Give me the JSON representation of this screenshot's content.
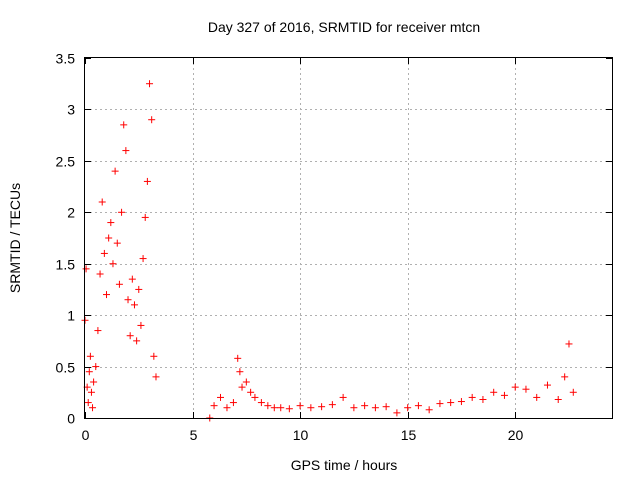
{
  "chart_data": {
    "type": "scatter",
    "title": "Day 327 of 2016, SRMTID for receiver mtcn",
    "xlabel": "GPS time / hours",
    "ylabel": "SRMTID / TECUs",
    "xlim": [
      0,
      24.5
    ],
    "ylim": [
      0,
      3.5
    ],
    "xticks": [
      0,
      5,
      10,
      15,
      20
    ],
    "xtick_labels": [
      "0",
      "5",
      "10",
      "15",
      "20"
    ],
    "yticks": [
      0,
      0.5,
      1,
      1.5,
      2,
      2.5,
      3,
      3.5
    ],
    "ytick_labels": [
      "0",
      "0.5",
      "1",
      "1.5",
      "2",
      "2.5",
      "3",
      "3.5"
    ],
    "grid": true,
    "marker": "+",
    "color": "#ff0000",
    "series": [
      {
        "name": "SRMTID",
        "x": [
          0.0,
          0.05,
          0.1,
          0.15,
          0.2,
          0.25,
          0.3,
          0.35,
          0.4,
          0.5,
          0.6,
          0.7,
          0.8,
          0.9,
          1.0,
          1.1,
          1.2,
          1.3,
          1.4,
          1.5,
          1.6,
          1.7,
          1.8,
          1.9,
          2.0,
          2.1,
          2.2,
          2.3,
          2.4,
          2.5,
          2.6,
          2.7,
          2.8,
          2.9,
          3.0,
          3.1,
          3.2,
          3.3,
          5.8,
          6.0,
          6.3,
          6.6,
          6.9,
          7.1,
          7.2,
          7.3,
          7.5,
          7.7,
          7.9,
          8.2,
          8.5,
          8.8,
          9.1,
          9.5,
          10.0,
          10.5,
          11.0,
          11.5,
          12.0,
          12.5,
          13.0,
          13.5,
          14.0,
          14.5,
          15.0,
          15.5,
          16.0,
          16.5,
          17.0,
          17.5,
          18.0,
          18.5,
          19.0,
          19.5,
          20.0,
          20.5,
          21.0,
          21.5,
          22.0,
          22.3,
          22.5,
          22.7
        ],
        "y": [
          0.95,
          1.45,
          0.3,
          0.15,
          0.45,
          0.6,
          0.25,
          0.1,
          0.35,
          0.5,
          0.85,
          1.4,
          2.1,
          1.6,
          1.2,
          1.75,
          1.9,
          1.5,
          2.4,
          1.7,
          1.3,
          2.0,
          2.85,
          2.6,
          1.15,
          0.8,
          1.35,
          1.1,
          0.75,
          1.25,
          0.9,
          1.55,
          1.95,
          2.3,
          3.25,
          2.9,
          0.6,
          0.4,
          0.0,
          0.12,
          0.2,
          0.1,
          0.15,
          0.58,
          0.45,
          0.3,
          0.35,
          0.25,
          0.2,
          0.15,
          0.12,
          0.1,
          0.1,
          0.09,
          0.12,
          0.1,
          0.11,
          0.13,
          0.2,
          0.1,
          0.12,
          0.1,
          0.11,
          0.05,
          0.1,
          0.12,
          0.08,
          0.14,
          0.15,
          0.16,
          0.2,
          0.18,
          0.25,
          0.22,
          0.3,
          0.28,
          0.2,
          0.32,
          0.18,
          0.4,
          0.72,
          0.25
        ]
      }
    ]
  }
}
